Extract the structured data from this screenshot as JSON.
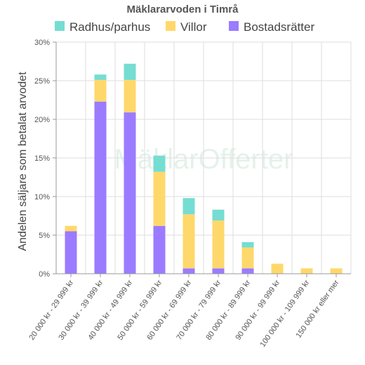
{
  "watermark_text": "MäklarOfferter",
  "chart_data": {
    "type": "bar",
    "stacked": true,
    "title": "Mäklararvoden i Timrå",
    "ylabel": "Andelen säljare som betalat arvodet",
    "xlabel": "",
    "ylim": [
      0,
      30
    ],
    "yticks": [
      "0%",
      "5%",
      "10%",
      "15%",
      "20%",
      "25%",
      "30%"
    ],
    "ytick_values": [
      0,
      5,
      10,
      15,
      20,
      25,
      30
    ],
    "grid": true,
    "legend_position": "top",
    "categories": [
      "20 000 kr - 29 999 kr",
      "30 000 kr - 39 999 kr",
      "40 000 kr - 49 999 kr",
      "50 000 kr - 59 999 kr",
      "60 000 kr - 69 999 kr",
      "70 000 kr - 79 999 kr",
      "80 000 kr - 89 999 kr",
      "90 000 kr - 99 999 kr",
      "100 000 kr - 109 999 kr",
      "150 000 kr eller mer"
    ],
    "series": [
      {
        "name": "Bostadsrätter",
        "color": "#9b7bff",
        "values": [
          5.5,
          22.3,
          20.9,
          6.2,
          0.7,
          0.7,
          0.7,
          0,
          0,
          0
        ]
      },
      {
        "name": "Villor",
        "color": "#ffd86b",
        "values": [
          0.7,
          2.8,
          4.2,
          7.0,
          7.0,
          6.2,
          2.7,
          1.3,
          0.7,
          0.7
        ]
      },
      {
        "name": "Radhus/parhus",
        "color": "#76ddd2",
        "values": [
          0,
          0.7,
          2.1,
          2.1,
          2.1,
          1.4,
          0.7,
          0,
          0,
          0
        ]
      }
    ],
    "legend_order": [
      "Radhus/parhus",
      "Villor",
      "Bostadsrätter"
    ]
  }
}
